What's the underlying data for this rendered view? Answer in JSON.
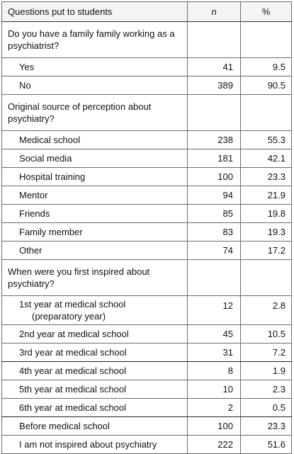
{
  "header": {
    "question": "Questions put to students",
    "n": "n",
    "pct": "%"
  },
  "sections": [
    {
      "title": "Do you have a family family working as a psychiatrist?",
      "rows": [
        {
          "label": "Yes",
          "n": "41",
          "pct": "9.5"
        },
        {
          "label": "No",
          "n": "389",
          "pct": "90.5"
        }
      ]
    },
    {
      "title": "Original source of perception about psychiatry?",
      "rows": [
        {
          "label": "Medical school",
          "n": "238",
          "pct": "55.3"
        },
        {
          "label": "Social media",
          "n": "181",
          "pct": "42.1"
        },
        {
          "label": "Hospital training",
          "n": "100",
          "pct": "23.3"
        },
        {
          "label": "Mentor",
          "n": "94",
          "pct": "21.9"
        },
        {
          "label": "Friends",
          "n": "85",
          "pct": "19.8"
        },
        {
          "label": "Family member",
          "n": "83",
          "pct": "19.3"
        },
        {
          "label": "Other",
          "n": "74",
          "pct": "17.2"
        }
      ]
    },
    {
      "title": "When were you first inspired about psychiatry?",
      "rows": [
        {
          "label": "1st year at medical school",
          "label2": "(preparatory year)",
          "n": "12",
          "pct": "2.8"
        },
        {
          "label": "2nd year at medical school",
          "n": "45",
          "pct": "10.5"
        },
        {
          "label": "3rd year at medical school",
          "n": "31",
          "pct": "7.2"
        },
        {
          "label": "4th year at medical school",
          "n": "8",
          "pct": "1.9"
        },
        {
          "label": "5th year at medical school",
          "n": "10",
          "pct": "2.3"
        },
        {
          "label": "6th year at medical school",
          "n": "2",
          "pct": "0.5"
        },
        {
          "label": "Before medical school",
          "n": "100",
          "pct": "23.3"
        },
        {
          "label": "I am not inspired about psychiatry",
          "n": "222",
          "pct": "51.6"
        }
      ]
    }
  ]
}
